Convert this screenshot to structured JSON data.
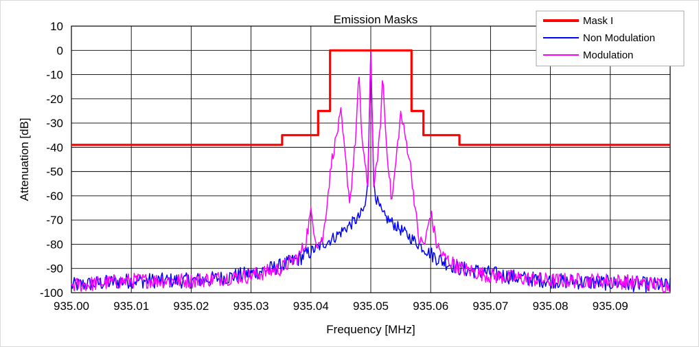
{
  "chart_data": {
    "type": "line",
    "title": "Emission Masks",
    "xlabel": "Frequency [MHz]",
    "ylabel": "Attenuation [dB]",
    "xlim": [
      935.0,
      935.1
    ],
    "ylim": [
      -100,
      10
    ],
    "grid": true,
    "legend_position": "top-right",
    "x_ticks": [
      935.0,
      935.01,
      935.02,
      935.03,
      935.04,
      935.05,
      935.06,
      935.07,
      935.08,
      935.09
    ],
    "x_tick_labels": [
      "935.00",
      "935.01",
      "935.02",
      "935.03",
      "935.04",
      "935.05",
      "935.06",
      "935.07",
      "935.08",
      "935.09"
    ],
    "y_ticks": [
      10,
      0,
      -10,
      -20,
      -30,
      -40,
      -50,
      -60,
      -70,
      -80,
      -90,
      -100
    ],
    "y_tick_labels": [
      "10",
      "0",
      "-10",
      "-20",
      "-30",
      "-40",
      "-50",
      "-60",
      "-70",
      "-80",
      "-90",
      "-100"
    ],
    "series": [
      {
        "name": "Mask I",
        "color": "#ff0000",
        "x": [
          935.0,
          935.0352,
          935.0352,
          935.0412,
          935.0412,
          935.0432,
          935.0432,
          935.0568,
          935.0568,
          935.0588,
          935.0588,
          935.0648,
          935.0648,
          935.1
        ],
        "y": [
          -39,
          -39,
          -35,
          -35,
          -25,
          -25,
          0,
          0,
          -25,
          -25,
          -35,
          -35,
          -39,
          -39
        ]
      },
      {
        "name": "Non Modulation",
        "color": "#0000ff",
        "x": [
          935.0,
          935.01,
          935.02,
          935.025,
          935.03,
          935.035,
          935.038,
          935.04,
          935.042,
          935.044,
          935.046,
          935.048,
          935.049,
          935.0495,
          935.05,
          935.0505,
          935.051,
          935.052,
          935.054,
          935.056,
          935.058,
          935.06,
          935.062,
          935.065,
          935.07,
          935.075,
          935.08,
          935.09,
          935.1
        ],
        "y": [
          -97,
          -95,
          -95,
          -94,
          -92,
          -89,
          -86,
          -83,
          -80,
          -77,
          -73,
          -69,
          -65,
          -55,
          0,
          -55,
          -62,
          -68,
          -72,
          -76,
          -80,
          -84,
          -87,
          -90,
          -92,
          -94,
          -95,
          -96,
          -97
        ]
      },
      {
        "name": "Modulation",
        "color": "#ff00ff",
        "x": [
          935.0,
          935.01,
          935.02,
          935.03,
          935.035,
          935.038,
          935.039,
          935.04,
          935.041,
          935.042,
          935.0435,
          935.045,
          935.0465,
          935.0475,
          935.048,
          935.0485,
          935.0495,
          935.05,
          935.0505,
          935.0515,
          935.052,
          935.0525,
          935.0535,
          935.055,
          935.0565,
          935.058,
          935.059,
          935.06,
          935.061,
          935.062,
          935.065,
          935.07,
          935.08,
          935.09,
          935.1
        ],
        "y": [
          -97,
          -95,
          -95,
          -93,
          -90,
          -85,
          -80,
          -67,
          -80,
          -78,
          -45,
          -26,
          -63,
          -35,
          -10,
          -35,
          -58,
          0,
          -58,
          -35,
          -10,
          -35,
          -63,
          -26,
          -45,
          -78,
          -80,
          -67,
          -80,
          -85,
          -90,
          -93,
          -95,
          -95,
          -97
        ]
      }
    ]
  }
}
